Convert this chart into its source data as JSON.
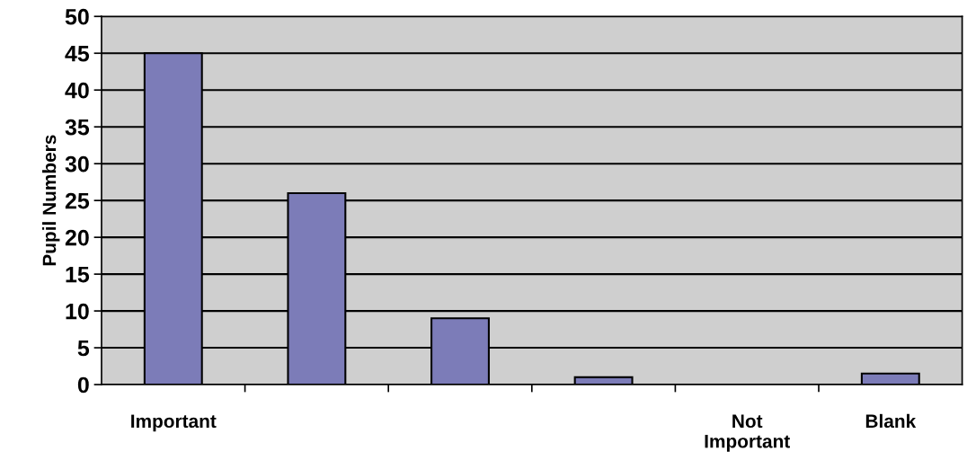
{
  "chart_data": {
    "type": "bar",
    "ylabel": "Pupil Numbers",
    "categories": [
      "Important",
      null,
      null,
      null,
      "Not\nImportant",
      "Blank"
    ],
    "values": [
      45,
      26,
      9,
      1,
      0,
      1.5
    ],
    "color": "#7c7cb8",
    "ylim": [
      0,
      50
    ],
    "yticks": [
      0,
      5,
      10,
      15,
      20,
      25,
      30,
      35,
      40,
      45,
      50
    ],
    "grid": "y",
    "legend": false
  }
}
